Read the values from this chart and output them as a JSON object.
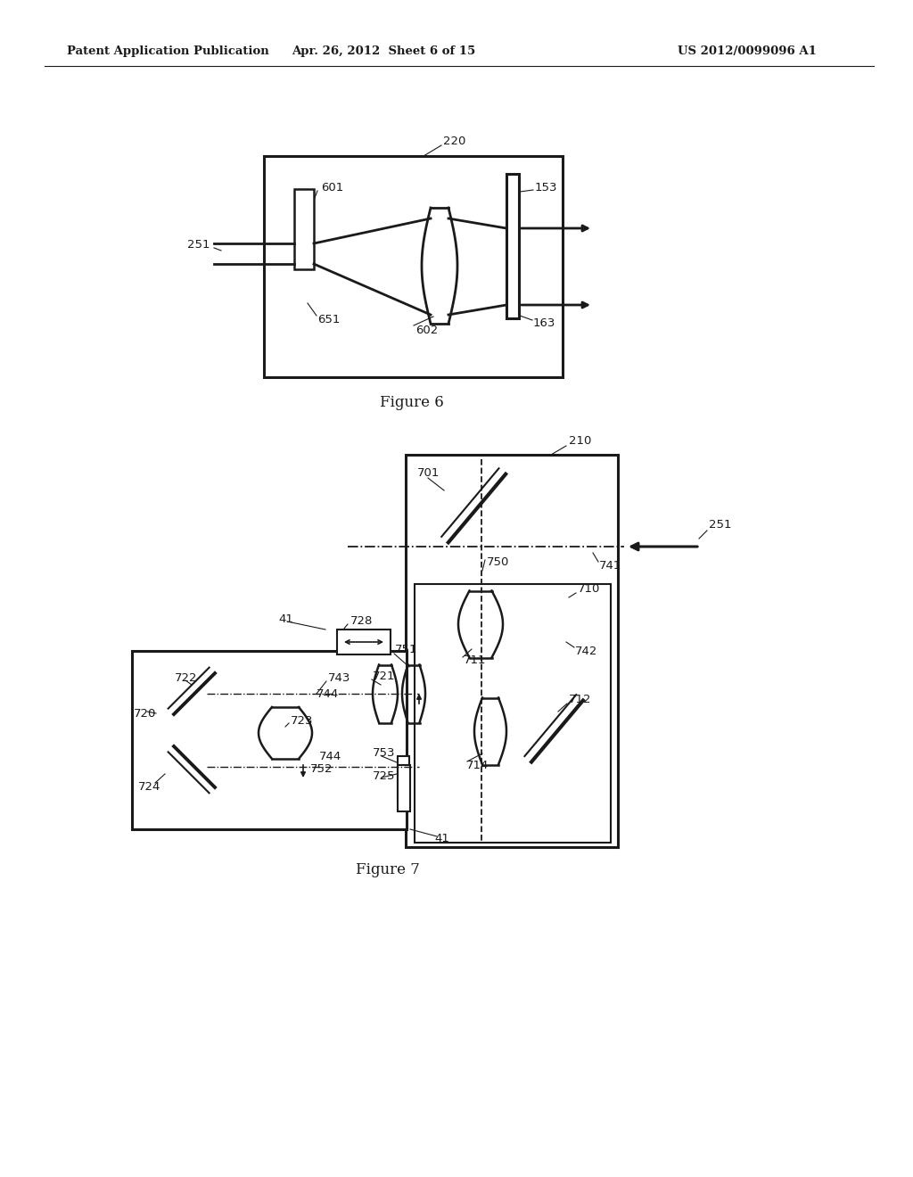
{
  "bg_color": "#ffffff",
  "header_left": "Patent Application Publication",
  "header_mid": "Apr. 26, 2012  Sheet 6 of 15",
  "header_right": "US 2012/0099096 A1",
  "fig6_caption": "Figure 6",
  "fig7_caption": "Figure 7",
  "dark": "#1a1a1a"
}
